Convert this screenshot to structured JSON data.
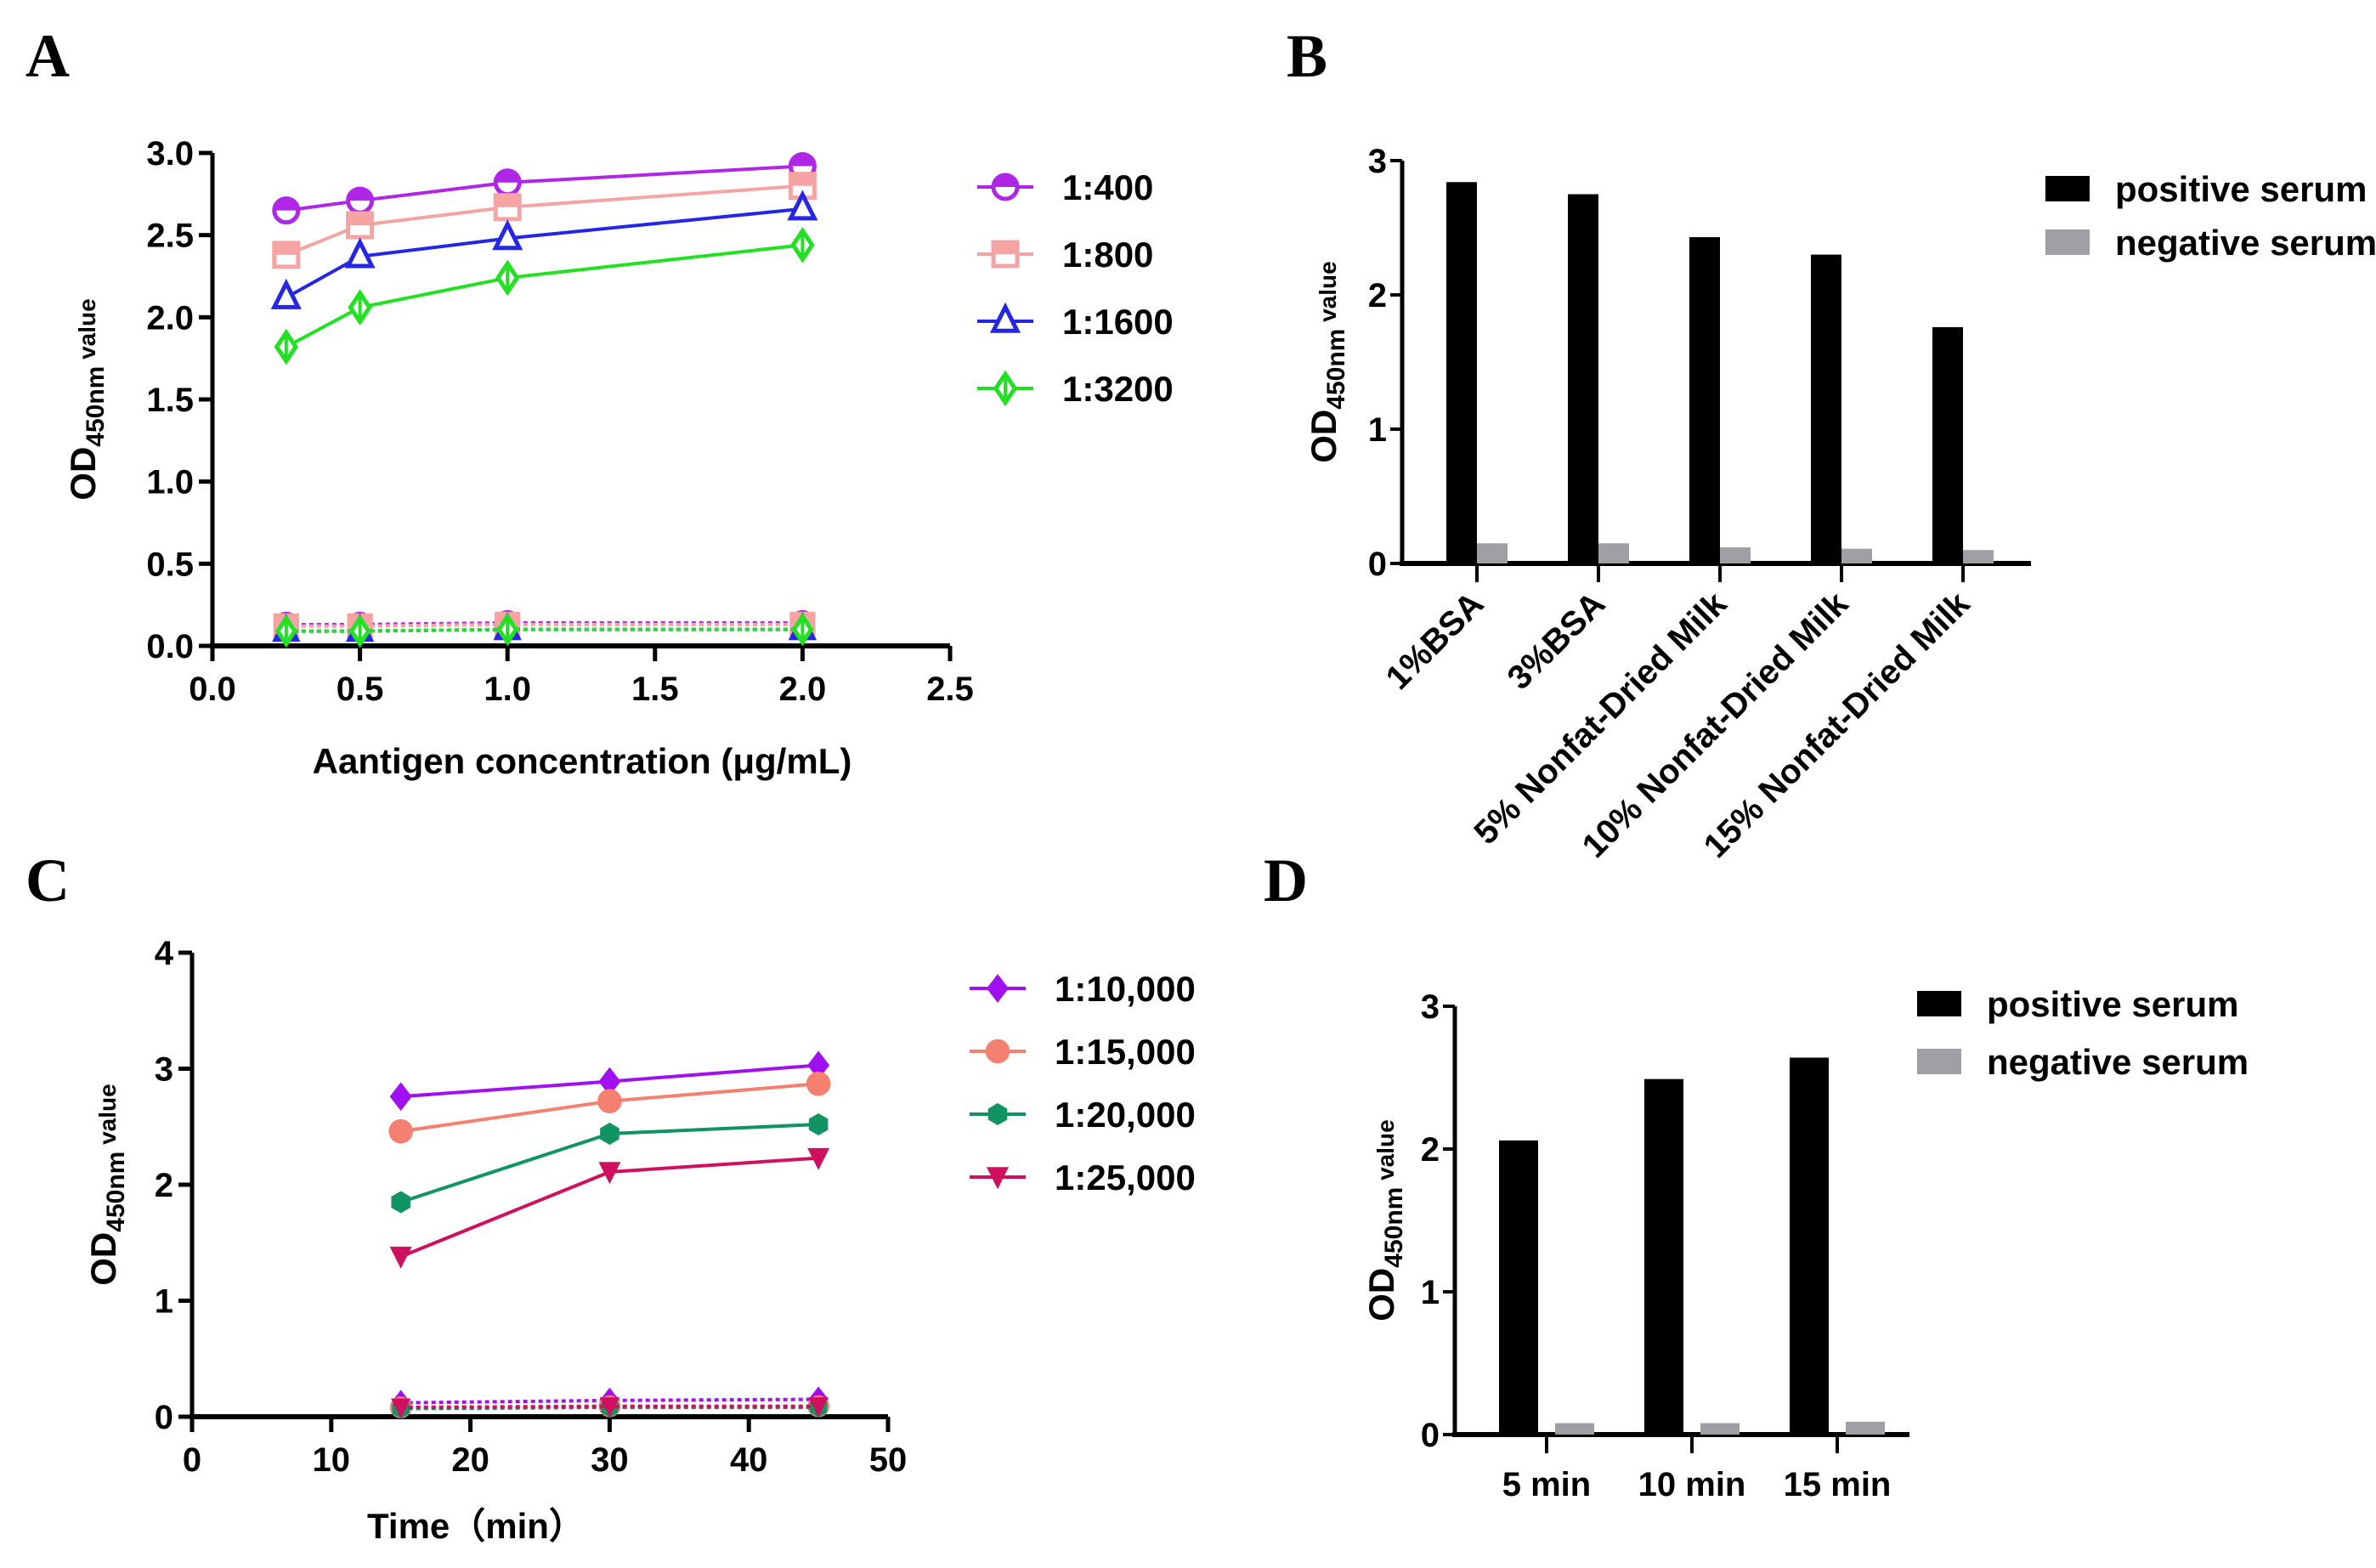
{
  "chart_data": [
    {
      "panel": "A",
      "type": "line",
      "xlabel": "Aantigen concentration (μg/mL)",
      "ylabel": {
        "main": "OD",
        "sub": "450nm",
        "suffix": " value"
      },
      "xlim": [
        0,
        2.5
      ],
      "ylim": [
        0,
        3.0
      ],
      "xticks": [
        "0.0",
        "0.5",
        "1.0",
        "1.5",
        "2.0",
        "2.5"
      ],
      "yticks": [
        "0.0",
        "0.5",
        "1.0",
        "1.5",
        "2.0",
        "2.5",
        "3.0"
      ],
      "x": [
        0.25,
        0.5,
        1.0,
        2.0
      ],
      "series": [
        {
          "name": "1:400",
          "marker": "half-circle",
          "color": "#b026e6",
          "values": [
            2.65,
            2.71,
            2.82,
            2.92
          ],
          "negative": [
            0.13,
            0.13,
            0.14,
            0.14
          ]
        },
        {
          "name": "1:800",
          "marker": "half-square",
          "color": "#f5a3a3",
          "values": [
            2.38,
            2.56,
            2.67,
            2.8
          ],
          "negative": [
            0.12,
            0.12,
            0.13,
            0.13
          ]
        },
        {
          "name": "1:1600",
          "marker": "open-triangle",
          "color": "#2626e6",
          "values": [
            2.12,
            2.37,
            2.48,
            2.66
          ],
          "negative": [
            0.09,
            0.09,
            0.1,
            0.1
          ]
        },
        {
          "name": "1:3200",
          "marker": "open-diamond",
          "color": "#22e022",
          "values": [
            1.82,
            2.06,
            2.24,
            2.44
          ],
          "negative": [
            0.09,
            0.09,
            0.1,
            0.1
          ]
        }
      ],
      "legend": "right"
    },
    {
      "panel": "B",
      "type": "bar",
      "ylabel": {
        "main": "OD",
        "sub": "450nm",
        "suffix": " value"
      },
      "ylim": [
        0,
        3
      ],
      "yticks": [
        "0",
        "1",
        "2",
        "3"
      ],
      "categories": [
        "1%BSA",
        "3%BSA",
        "5% Nonfat-Dried Milk",
        "10% Nonfat-Dried Milk",
        "15% Nonfat-Dried Milk"
      ],
      "series": [
        {
          "name": "positive serum",
          "color": "#000000",
          "values": [
            2.84,
            2.75,
            2.43,
            2.3,
            1.76
          ]
        },
        {
          "name": "negative serum",
          "color": "#a0a0a4",
          "values": [
            0.15,
            0.15,
            0.12,
            0.11,
            0.1
          ]
        }
      ],
      "legend": "top-right"
    },
    {
      "panel": "C",
      "type": "line",
      "xlabel": "Time（min）",
      "ylabel": {
        "main": "OD",
        "sub": "450nm",
        "suffix": "  value"
      },
      "xlim": [
        0,
        50
      ],
      "ylim": [
        0,
        4
      ],
      "xticks": [
        "0",
        "10",
        "20",
        "30",
        "40",
        "50"
      ],
      "yticks": [
        "0",
        "1",
        "2",
        "3",
        "4"
      ],
      "x": [
        15,
        30,
        45
      ],
      "series": [
        {
          "name": "1:10,000",
          "marker": "diamond",
          "color": "#a010f0",
          "values": [
            2.76,
            2.89,
            3.03
          ],
          "negative": [
            0.12,
            0.14,
            0.15
          ]
        },
        {
          "name": "1:15,000",
          "marker": "circle",
          "color": "#f58070",
          "values": [
            2.46,
            2.72,
            2.87
          ],
          "negative": [
            0.08,
            0.09,
            0.09
          ]
        },
        {
          "name": "1:20,000",
          "marker": "hexagon",
          "color": "#109462",
          "values": [
            1.85,
            2.44,
            2.52
          ],
          "negative": [
            0.07,
            0.08,
            0.08
          ]
        },
        {
          "name": "1:25,000",
          "marker": "down-triangle",
          "color": "#d0105e",
          "values": [
            1.38,
            2.11,
            2.23
          ],
          "negative": [
            0.08,
            0.09,
            0.09
          ]
        }
      ],
      "legend": "right"
    },
    {
      "panel": "D",
      "type": "bar",
      "ylabel": {
        "main": "OD",
        "sub": "450nm",
        "suffix": " value"
      },
      "ylim": [
        0,
        3
      ],
      "yticks": [
        "0",
        "1",
        "2",
        "3"
      ],
      "categories": [
        "5 min",
        "10 min",
        "15 min"
      ],
      "series": [
        {
          "name": "positive serum",
          "color": "#000000",
          "values": [
            2.06,
            2.49,
            2.64
          ]
        },
        {
          "name": "negative serum",
          "color": "#a0a0a4",
          "values": [
            0.08,
            0.08,
            0.09
          ]
        }
      ],
      "legend": "top-right"
    }
  ]
}
